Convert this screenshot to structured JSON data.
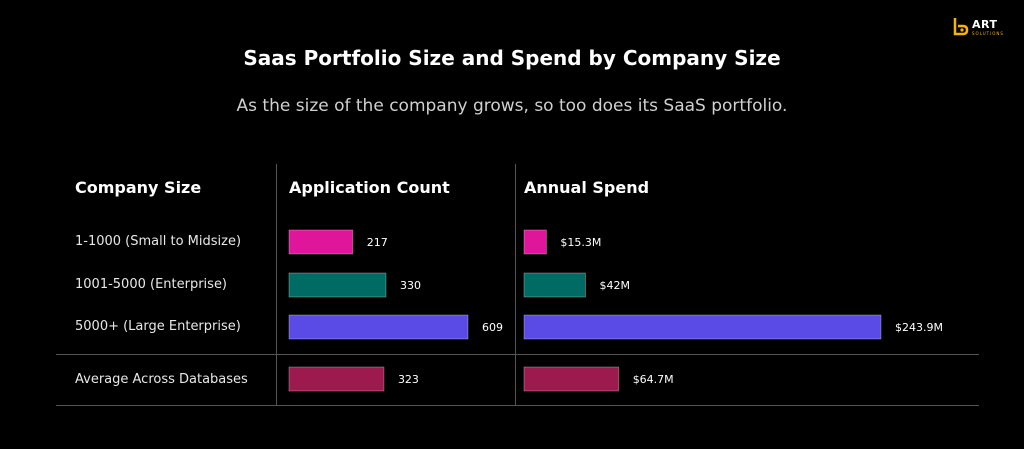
{
  "title": "Saas Portfolio Size and Spend by Company Size",
  "subtitle": "As the size of the company grows, so too does its SaaS portfolio.",
  "logo": {
    "main": "ART",
    "sub": "SOLUTIONS",
    "accent_color": "#f5b400"
  },
  "chart_data": {
    "type": "bar",
    "orientation": "horizontal",
    "categories": [
      "1-1000 (Small to Midsize)",
      "1001-5000 (Enterprise)",
      "5000+ (Large Enterprise)",
      "Average Across Databases"
    ],
    "header_labels": {
      "category": "Company Size"
    },
    "series": [
      {
        "name": "Application Count",
        "values": [
          217,
          330,
          609,
          323
        ],
        "labels": [
          "217",
          "330",
          "609",
          "323"
        ]
      },
      {
        "name": "Annual Spend",
        "values": [
          15.3,
          42,
          243.9,
          64.7
        ],
        "labels": [
          "$15.3M",
          "$42M",
          "$243.9M",
          "$64.7M"
        ]
      }
    ],
    "colors": [
      "#e0169a",
      "#006b63",
      "#5a4ae6",
      "#9c1a4d"
    ],
    "grid": false,
    "legend": "none"
  }
}
